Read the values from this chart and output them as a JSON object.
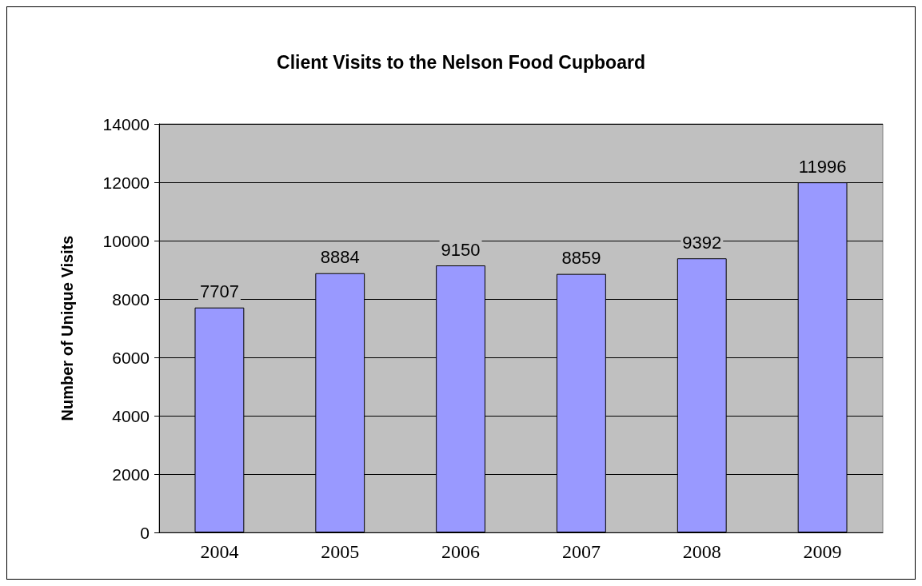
{
  "chart_data": {
    "type": "bar",
    "title": "Client Visits to the Nelson Food Cupboard",
    "ylabel": "Number of Unique Visits",
    "categories": [
      "2004",
      "2005",
      "2006",
      "2007",
      "2008",
      "2009"
    ],
    "values": [
      7707,
      8884,
      9150,
      8859,
      9392,
      11996
    ],
    "color": "#9999ff",
    "ylim": [
      0,
      14000
    ],
    "yticks": [
      0,
      2000,
      4000,
      6000,
      8000,
      10000,
      12000,
      14000
    ],
    "grid": "y",
    "data_labels": true
  }
}
